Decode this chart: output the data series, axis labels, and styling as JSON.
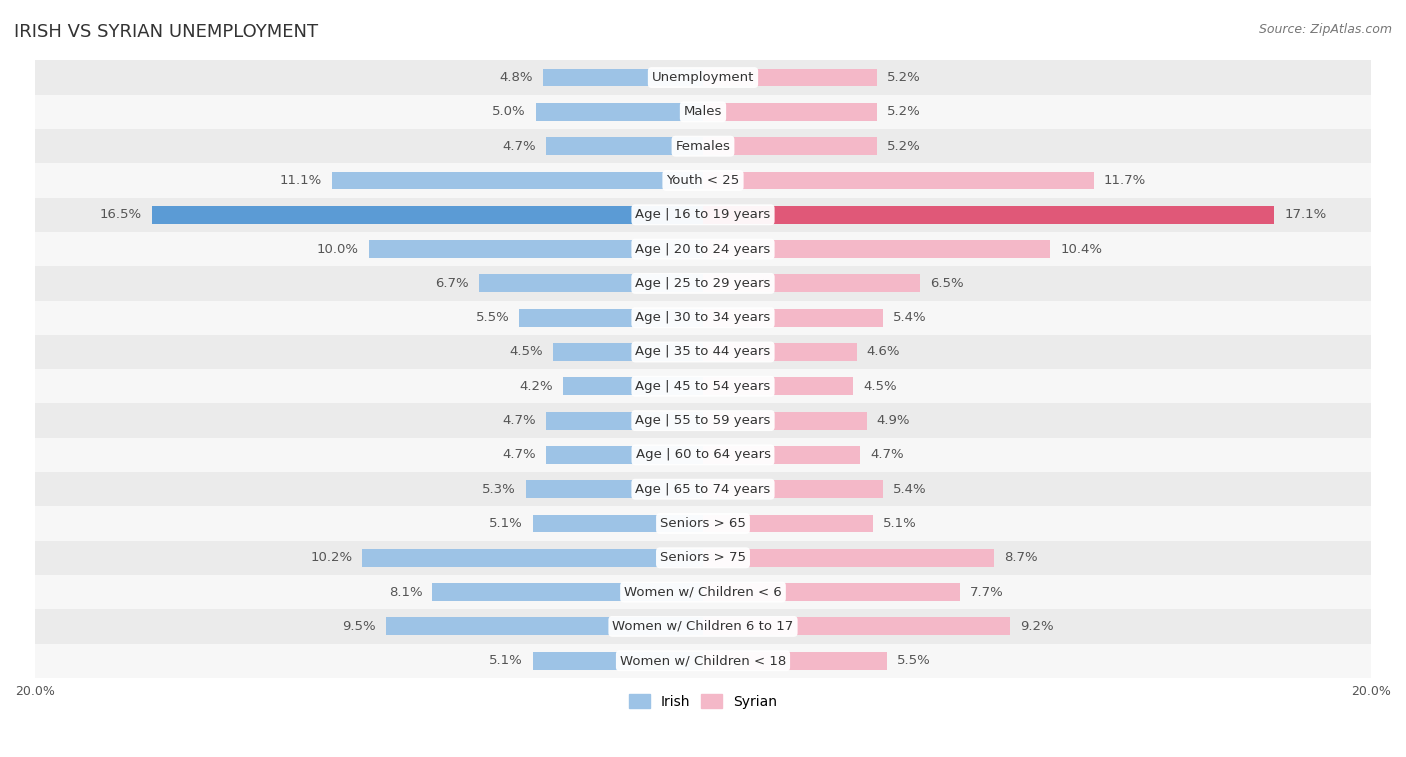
{
  "title": "IRISH VS SYRIAN UNEMPLOYMENT",
  "source": "Source: ZipAtlas.com",
  "categories": [
    "Unemployment",
    "Males",
    "Females",
    "Youth < 25",
    "Age | 16 to 19 years",
    "Age | 20 to 24 years",
    "Age | 25 to 29 years",
    "Age | 30 to 34 years",
    "Age | 35 to 44 years",
    "Age | 45 to 54 years",
    "Age | 55 to 59 years",
    "Age | 60 to 64 years",
    "Age | 65 to 74 years",
    "Seniors > 65",
    "Seniors > 75",
    "Women w/ Children < 6",
    "Women w/ Children 6 to 17",
    "Women w/ Children < 18"
  ],
  "irish_values": [
    4.8,
    5.0,
    4.7,
    11.1,
    16.5,
    10.0,
    6.7,
    5.5,
    4.5,
    4.2,
    4.7,
    4.7,
    5.3,
    5.1,
    10.2,
    8.1,
    9.5,
    5.1
  ],
  "syrian_values": [
    5.2,
    5.2,
    5.2,
    11.7,
    17.1,
    10.4,
    6.5,
    5.4,
    4.6,
    4.5,
    4.9,
    4.7,
    5.4,
    5.1,
    8.7,
    7.7,
    9.2,
    5.5
  ],
  "irish_color": "#9dc3e6",
  "syrian_color": "#f4b8c8",
  "irish_highlight": "#5b9bd5",
  "syrian_highlight": "#e05878",
  "bar_height": 0.52,
  "axis_limit": 20.0,
  "bg_color_odd": "#ebebeb",
  "bg_color_even": "#f7f7f7",
  "label_fontsize": 9.5,
  "title_fontsize": 13,
  "source_fontsize": 9,
  "axis_label_fontsize": 9,
  "legend_fontsize": 10,
  "value_color": "#555555",
  "category_label_fontsize": 9.5
}
